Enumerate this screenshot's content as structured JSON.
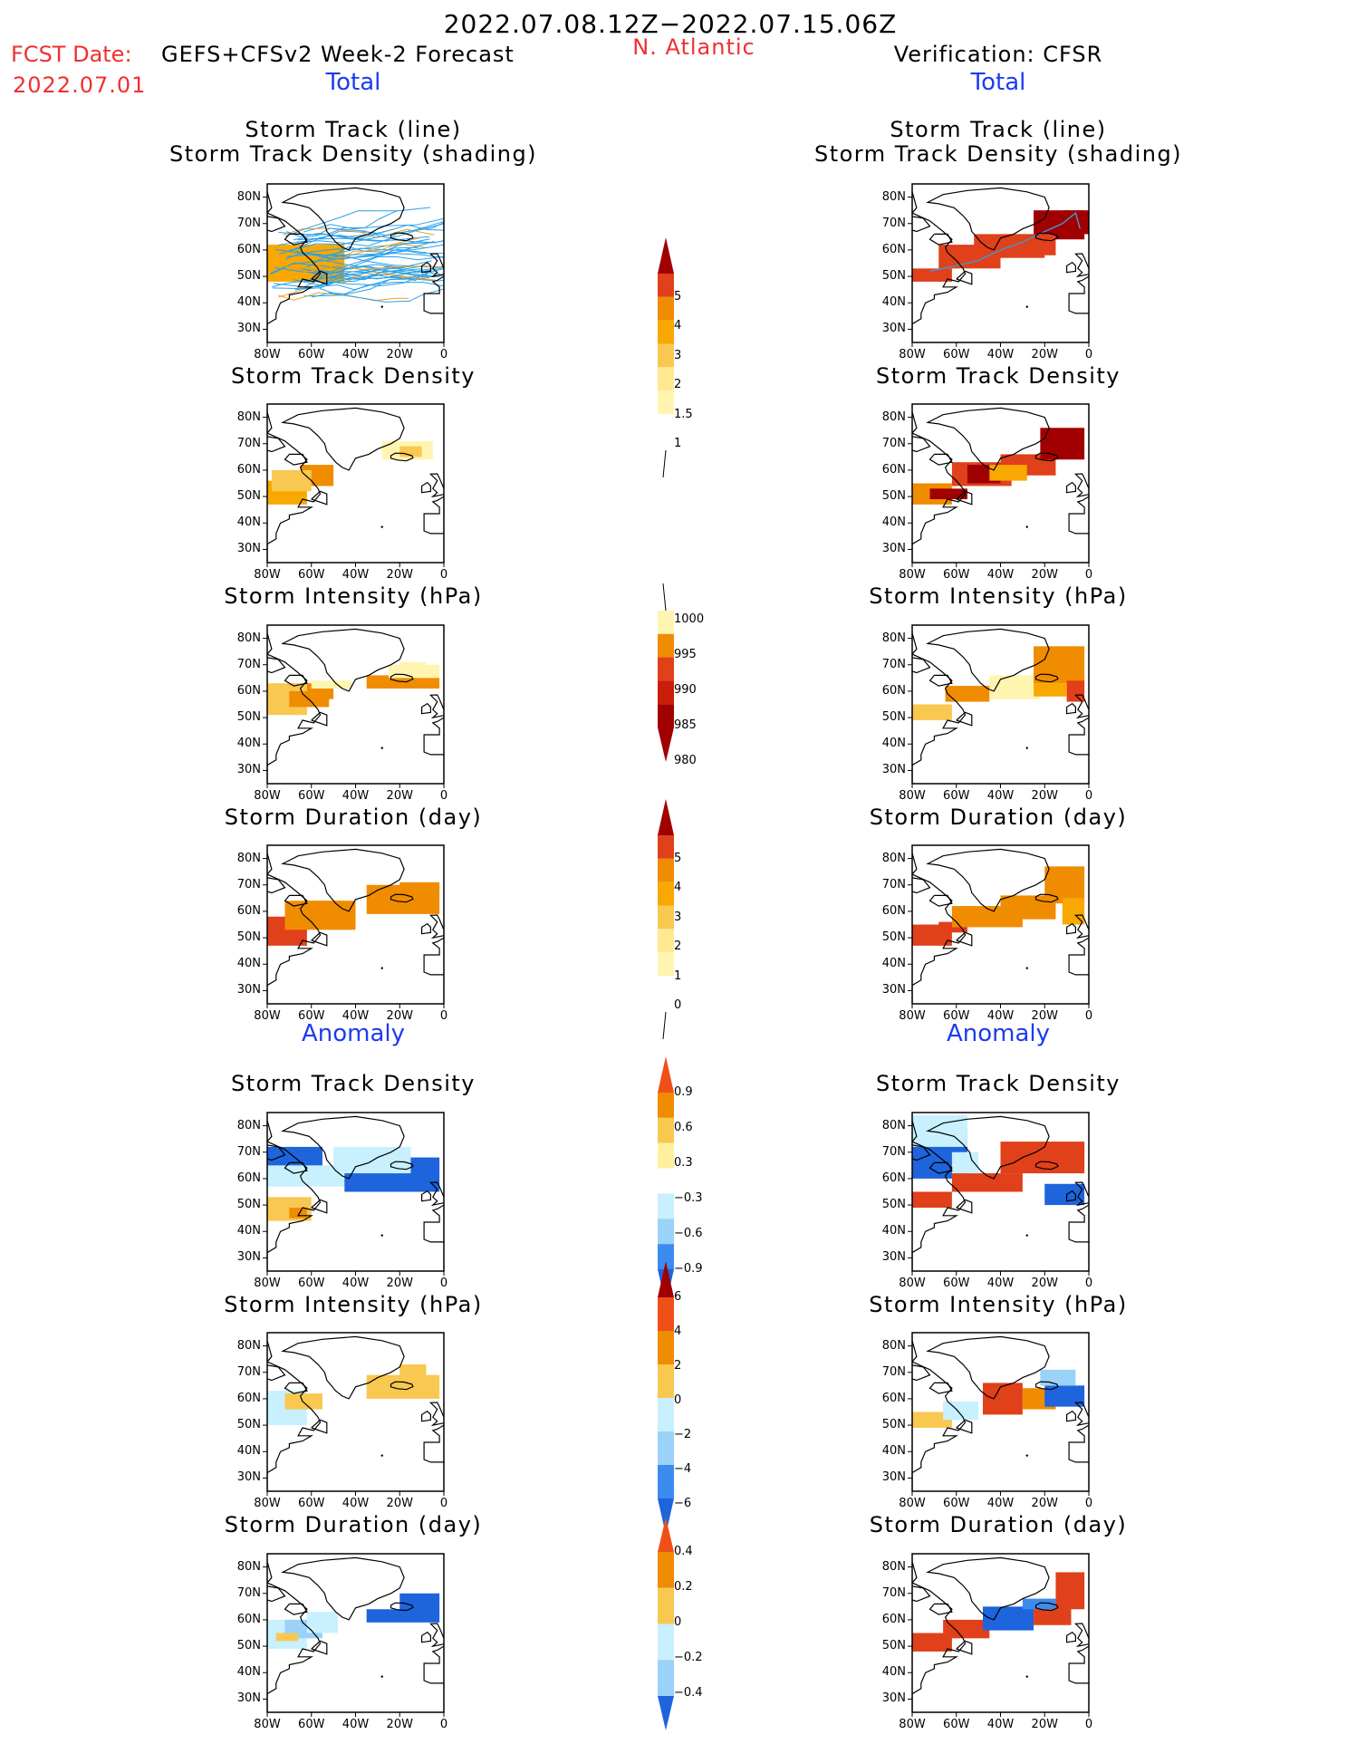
{
  "header": {
    "period": "2022.07.08.12Z−2022.07.15.06Z",
    "region": "N. Atlantic",
    "fcst_date_label": "FCST Date:",
    "fcst_model": "GEFS+CFSv2 Week-2 Forecast",
    "fcst_date": "2022.07.01",
    "verification": "Verification: CFSR",
    "left_section_total": "Total",
    "right_section_total": "Total",
    "left_section_anomaly": "Anomaly",
    "right_section_anomaly": "Anomaly"
  },
  "panel_titles": {
    "track_line": "Storm Track (line)",
    "track_density_shading": "Storm Track Density (shading)",
    "track_density": "Storm Track Density",
    "intensity": "Storm Intensity (hPa)",
    "duration": "Storm Duration (day)"
  },
  "axes": {
    "lat_labels": [
      "80N",
      "70N",
      "60N",
      "50N",
      "40N",
      "30N"
    ],
    "lon_labels": [
      "80W",
      "60W",
      "40W",
      "20W",
      "0"
    ]
  },
  "colors": {
    "brown_dark": "#a00000",
    "red": "#e0401a",
    "orange": "#f08c00",
    "orange_light": "#f8a800",
    "yellow": "#f8c850",
    "yellow_pale": "#fff5b0",
    "blue_dark": "#1e64dc",
    "blue": "#3c8cf0",
    "blue_light": "#9ad2f8",
    "cyan_pale": "#c8f0ff",
    "track_blue": "#2aa0e8",
    "track_orange": "#f0a020"
  },
  "chart_data": [
    {
      "type": "heatmap",
      "id": "fcst_total_track_line",
      "title": "Storm Track (line) / Storm Track Density (shading)",
      "region_lon_range": [
        -80,
        0
      ],
      "region_lat_range": [
        25,
        85
      ]
    },
    {
      "type": "heatmap",
      "id": "colorbar_track_density",
      "levels": [
        1,
        1.5,
        2,
        3,
        4,
        5
      ],
      "level_labels": [
        "1",
        "1.5",
        "2",
        "3",
        "4",
        "5"
      ]
    },
    {
      "type": "heatmap",
      "id": "colorbar_intensity",
      "levels": [
        1000,
        995,
        990,
        985,
        980
      ],
      "level_labels": [
        "1000",
        "995",
        "990",
        "985",
        "980"
      ]
    },
    {
      "type": "heatmap",
      "id": "colorbar_duration",
      "levels": [
        0,
        1,
        2,
        3,
        4,
        5
      ],
      "level_labels": [
        "0",
        "1",
        "2",
        "3",
        "4",
        "5"
      ]
    },
    {
      "type": "heatmap",
      "id": "colorbar_anom_density",
      "levels": [
        -0.9,
        -0.6,
        -0.3,
        0.3,
        0.6,
        0.9
      ],
      "level_labels": [
        "0.9",
        "0.6",
        "0.3",
        "−0.3",
        "−0.6",
        "−0.9"
      ]
    },
    {
      "type": "heatmap",
      "id": "colorbar_anom_intensity",
      "levels": [
        -6,
        -4,
        -2,
        0,
        2,
        4,
        6
      ],
      "level_labels": [
        "6",
        "4",
        "2",
        "0",
        "−2",
        "−4",
        "−6"
      ]
    },
    {
      "type": "heatmap",
      "id": "colorbar_anom_duration",
      "levels": [
        -0.4,
        -0.2,
        0,
        0.2,
        0.4
      ],
      "level_labels": [
        "0.4",
        "0.2",
        "0",
        "−0.2",
        "−0.4"
      ]
    }
  ]
}
